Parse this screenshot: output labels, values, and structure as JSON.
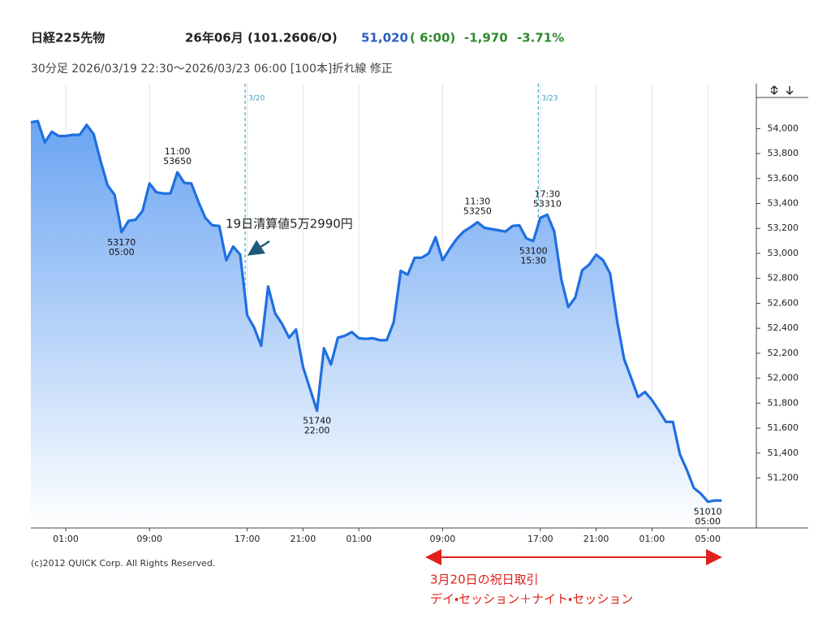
{
  "chart_data": {
    "type": "area",
    "header": {
      "name": "日経225先物",
      "contract": "26年06月 (101.2606/O)",
      "price": "51,020",
      "time": "( 6:00)",
      "change": "-1,970",
      "change_pct": "-3.71%"
    },
    "subtitle": "30分足  2026/03/19 22:30～2026/03/23 06:00 [100本]折れ線 修正",
    "categories": [
      null,
      null,
      null,
      null,
      null,
      "01:00",
      null,
      null,
      null,
      null,
      null,
      null,
      null,
      null,
      null,
      null,
      null,
      "09:00",
      null,
      null,
      null,
      null,
      null,
      null,
      null,
      null,
      null,
      null,
      null,
      null,
      null,
      "17:00",
      null,
      null,
      null,
      null,
      null,
      null,
      null,
      "21:00",
      null,
      null,
      null,
      null,
      null,
      null,
      null,
      "01:00",
      null,
      null,
      null,
      null,
      null,
      null,
      null,
      null,
      null,
      null,
      null,
      "09:00",
      null,
      null,
      null,
      null,
      null,
      null,
      null,
      null,
      null,
      null,
      null,
      null,
      null,
      "17:00",
      null,
      null,
      null,
      null,
      null,
      null,
      null,
      "21:00",
      null,
      null,
      null,
      null,
      null,
      null,
      null,
      "01:00",
      null,
      null,
      null,
      null,
      null,
      null,
      null,
      "05:00",
      null,
      null
    ],
    "values": [
      54050,
      54060,
      53890,
      53975,
      53940,
      53940,
      53950,
      53950,
      54030,
      53955,
      53740,
      53545,
      53470,
      53170,
      53260,
      53270,
      53340,
      53560,
      53490,
      53480,
      53480,
      53650,
      53565,
      53560,
      53415,
      53285,
      53225,
      53220,
      52945,
      53055,
      52990,
      52505,
      52405,
      52260,
      52735,
      52520,
      52435,
      52325,
      52390,
      52090,
      51915,
      51740,
      52240,
      52110,
      52325,
      52340,
      52370,
      52320,
      52315,
      52320,
      52305,
      52305,
      52450,
      52860,
      52830,
      52965,
      52965,
      53000,
      53130,
      52945,
      53035,
      53115,
      53175,
      53210,
      53250,
      53205,
      53195,
      53185,
      53175,
      53220,
      53225,
      53120,
      53100,
      53285,
      53310,
      53175,
      52795,
      52570,
      52645,
      52865,
      52910,
      52990,
      52945,
      52840,
      52460,
      52155,
      52005,
      51850,
      51890,
      51825,
      51740,
      51650,
      51650,
      51390,
      51265,
      51120,
      51075,
      51010,
      51020,
      51020
    ],
    "color": "#1f6fe0",
    "ylim": [
      50800,
      54360
    ],
    "yticks": [
      {
        "value": 51200,
        "label": "51,200"
      },
      {
        "value": 51400,
        "label": "51,400"
      },
      {
        "value": 51600,
        "label": "51,600"
      },
      {
        "value": 51800,
        "label": "51,800"
      },
      {
        "value": 52000,
        "label": "52,000"
      },
      {
        "value": 52200,
        "label": "52,200"
      },
      {
        "value": 52400,
        "label": "52,400"
      },
      {
        "value": 52600,
        "label": "52,600"
      },
      {
        "value": 52800,
        "label": "52,800"
      },
      {
        "value": 53000,
        "label": "53,000"
      },
      {
        "value": 53200,
        "label": "53,200"
      },
      {
        "value": 53400,
        "label": "53,400"
      },
      {
        "value": 53600,
        "label": "53,600"
      },
      {
        "value": 53800,
        "label": "53,800"
      },
      {
        "value": 54000,
        "label": "54,000"
      }
    ],
    "grid": true,
    "annotations": [
      {
        "index": 13,
        "value": 53170,
        "time": "05:00",
        "placement": "below"
      },
      {
        "index": 21,
        "value": 53650,
        "time": "11:00",
        "placement": "above"
      },
      {
        "index": 41,
        "value": 51740,
        "time": "22:00",
        "placement": "below"
      },
      {
        "index": 64,
        "value": 53250,
        "time": "11:30",
        "placement": "above"
      },
      {
        "index": 72,
        "value": 53100,
        "time": "15:30",
        "placement": "below"
      },
      {
        "index": 74,
        "value": 53310,
        "time": "17:30",
        "placement": "above"
      },
      {
        "index": 97,
        "value": 51010,
        "time": "05:00",
        "placement": "below"
      }
    ],
    "date_markers": [
      {
        "index": 31,
        "label": "3/20"
      },
      {
        "index": 73,
        "label": "3/23"
      }
    ],
    "callout": "19日清算値5万2990円",
    "copyright": "(c)2012 QUICK Corp. All Rights Reserved.",
    "note": [
      "3月20日の祝日取引",
      "デイ・セッション＋ナイト・セッション"
    ]
  }
}
